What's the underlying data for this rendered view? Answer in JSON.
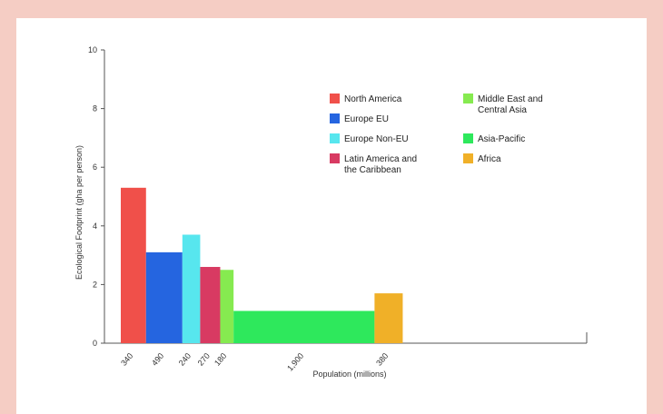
{
  "chart_data": {
    "type": "bar",
    "subtype": "variable-width",
    "xlabel": "Population (millions)",
    "ylabel": "Ecological Footprint (gha per person)",
    "ylim": [
      0,
      10
    ],
    "yticks": [
      0,
      2,
      4,
      6,
      8,
      10
    ],
    "x_scale_max": 6500,
    "legend_position": "top-right",
    "series": [
      {
        "name": "North America",
        "population_label": "340",
        "population": 340,
        "footprint": 5.3,
        "color": "#f0504a"
      },
      {
        "name": "Europe EU",
        "population_label": "490",
        "population": 490,
        "footprint": 3.1,
        "color": "#2565e0"
      },
      {
        "name": "Europe Non-EU",
        "population_label": "240",
        "population": 240,
        "footprint": 3.7,
        "color": "#57e6ee"
      },
      {
        "name": "Latin America and the Caribbean",
        "population_label": "270",
        "population": 270,
        "footprint": 2.6,
        "color": "#d83a62"
      },
      {
        "name": "Middle East and Central Asia",
        "population_label": "180",
        "population": 180,
        "footprint": 2.5,
        "color": "#86ea50"
      },
      {
        "name": "Asia-Pacific",
        "population_label": "1,900",
        "population": 1900,
        "footprint": 1.1,
        "color": "#2ee85c"
      },
      {
        "name": "Africa",
        "population_label": "380",
        "population": 380,
        "footprint": 1.7,
        "color": "#f0b028"
      }
    ]
  }
}
